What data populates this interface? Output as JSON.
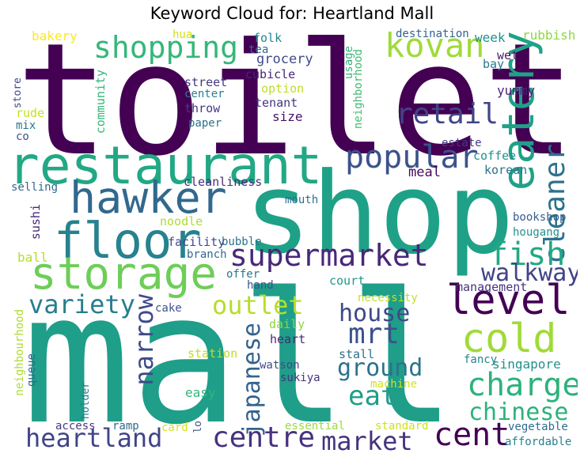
{
  "title": "Keyword Cloud for: Heartland Mall",
  "palette": {
    "dark_purple": "#440154",
    "purple": "#46327e",
    "indigo": "#365c8d",
    "blue": "#277f8e",
    "teal": "#1fa187",
    "green": "#4ac16d",
    "lime": "#a0da39",
    "yellow": "#d9e21b"
  },
  "words": [
    {
      "id": "toilet",
      "text": "toilet",
      "color": "#440154"
    },
    {
      "id": "shop",
      "text": "shop",
      "color": "#1fa187"
    },
    {
      "id": "mall",
      "text": "mall",
      "color": "#1f9e89"
    },
    {
      "id": "restaurant",
      "text": "restaurant",
      "color": "#22a884"
    },
    {
      "id": "hawker",
      "text": "hawker",
      "color": "#31688e"
    },
    {
      "id": "floor",
      "text": "floor",
      "color": "#26828e"
    },
    {
      "id": "storage",
      "text": "storage",
      "color": "#6ece58"
    },
    {
      "id": "eatery",
      "text": "eatery",
      "color": "#1fa187"
    },
    {
      "id": "kovan",
      "text": "kovan",
      "color": "#a0da39"
    },
    {
      "id": "shopping",
      "text": "shopping",
      "color": "#35b779"
    },
    {
      "id": "popular",
      "text": "popular",
      "color": "#3b528b"
    },
    {
      "id": "retail",
      "text": "retail",
      "color": "#404688"
    },
    {
      "id": "cleaner",
      "text": "cleaner",
      "color": "#2c728e"
    },
    {
      "id": "supermarket",
      "text": "supermarket",
      "color": "#482878"
    },
    {
      "id": "level",
      "text": "level",
      "color": "#440154"
    },
    {
      "id": "cold",
      "text": "cold",
      "color": "#a0da39"
    },
    {
      "id": "fish",
      "text": "fish",
      "color": "#22a884"
    },
    {
      "id": "walkway",
      "text": "walkway",
      "color": "#414487"
    },
    {
      "id": "variety",
      "text": "variety",
      "color": "#287d8e"
    },
    {
      "id": "outlet",
      "text": "outlet",
      "color": "#b5de2b"
    },
    {
      "id": "narrow",
      "text": "narrow",
      "color": "#3e4a89"
    },
    {
      "id": "house",
      "text": "house",
      "color": "#3e4989"
    },
    {
      "id": "mrt",
      "text": "mrt",
      "color": "#3b528b"
    },
    {
      "id": "charge",
      "text": "charge",
      "color": "#2db27d"
    },
    {
      "id": "ground",
      "text": "ground",
      "color": "#2c728e"
    },
    {
      "id": "japanese",
      "text": "japanese",
      "color": "#33638d"
    },
    {
      "id": "eat",
      "text": "eat",
      "color": "#1f9e89"
    },
    {
      "id": "chinese",
      "text": "chinese",
      "color": "#2db27d"
    },
    {
      "id": "heartland",
      "text": "heartland",
      "color": "#414487"
    },
    {
      "id": "centre",
      "text": "centre",
      "color": "#46327e"
    },
    {
      "id": "market",
      "text": "market",
      "color": "#46327e"
    },
    {
      "id": "cent",
      "text": "cent",
      "color": "#440154"
    },
    {
      "id": "grocery",
      "text": "grocery",
      "color": "#3e4a89"
    },
    {
      "id": "bakery",
      "text": "bakery",
      "color": "#fde725"
    },
    {
      "id": "hua",
      "text": "hua",
      "color": "#d2e21b"
    },
    {
      "id": "folk",
      "text": "folk",
      "color": "#25858e"
    },
    {
      "id": "tea",
      "text": "tea",
      "color": "#31688e"
    },
    {
      "id": "cubicle",
      "text": "cubicle",
      "color": "#482475"
    },
    {
      "id": "usage",
      "text": "usage",
      "color": "#35b779"
    },
    {
      "id": "neighborhood",
      "text": "neighborhood",
      "color": "#3fbc73"
    },
    {
      "id": "destination",
      "text": "destination",
      "color": "#33638d"
    },
    {
      "id": "week",
      "text": "week",
      "color": "#21918c"
    },
    {
      "id": "rubbish",
      "text": "rubbish",
      "color": "#8fd744"
    },
    {
      "id": "bay",
      "text": "bay",
      "color": "#2a788e"
    },
    {
      "id": "wet",
      "text": "wet",
      "color": "#481a6c"
    },
    {
      "id": "yummy",
      "text": "yummy",
      "color": "#482475"
    },
    {
      "id": "store",
      "text": "store",
      "color": "#3e4a89"
    },
    {
      "id": "community",
      "text": "community",
      "color": "#35b779"
    },
    {
      "id": "street",
      "text": "street",
      "color": "#453781"
    },
    {
      "id": "center",
      "text": "center",
      "color": "#277f8e"
    },
    {
      "id": "throw",
      "text": "throw",
      "color": "#443983"
    },
    {
      "id": "paper",
      "text": "paper",
      "color": "#2d708e"
    },
    {
      "id": "option",
      "text": "option",
      "color": "#bddf26"
    },
    {
      "id": "tenant",
      "text": "tenant",
      "color": "#453581"
    },
    {
      "id": "size",
      "text": "size",
      "color": "#471164"
    },
    {
      "id": "rude",
      "text": "rude",
      "color": "#c8e020"
    },
    {
      "id": "mix",
      "text": "mix",
      "color": "#2a788e"
    },
    {
      "id": "co",
      "text": "co",
      "color": "#3b528b"
    },
    {
      "id": "estate",
      "text": "estate",
      "color": "#443983"
    },
    {
      "id": "coffee",
      "text": "coffee",
      "color": "#21918c"
    },
    {
      "id": "korean",
      "text": "korean",
      "color": "#2c728e"
    },
    {
      "id": "meal",
      "text": "meal",
      "color": "#46085c"
    },
    {
      "id": "selling",
      "text": "selling",
      "color": "#31688e"
    },
    {
      "id": "sushi",
      "text": "sushi",
      "color": "#482878"
    },
    {
      "id": "cleanliness",
      "text": "cleanliness",
      "color": "#472d7b"
    },
    {
      "id": "mouth",
      "text": "mouth",
      "color": "#2d708e"
    },
    {
      "id": "noodle",
      "text": "noodle",
      "color": "#addc30"
    },
    {
      "id": "bubble",
      "text": "bubble",
      "color": "#2c728e"
    },
    {
      "id": "bookshop",
      "text": "bookshop",
      "color": "#365c8d"
    },
    {
      "id": "hougang",
      "text": "hougang",
      "color": "#21918c"
    },
    {
      "id": "facility",
      "text": "facility",
      "color": "#3e4a89"
    },
    {
      "id": "branch",
      "text": "branch",
      "color": "#31688e"
    },
    {
      "id": "ball",
      "text": "ball",
      "color": "#b5de2b"
    },
    {
      "id": "offer",
      "text": "offer",
      "color": "#2a788e"
    },
    {
      "id": "hand",
      "text": "hand",
      "color": "#3b528b"
    },
    {
      "id": "court",
      "text": "court",
      "color": "#1e9b8a"
    },
    {
      "id": "management",
      "text": "management",
      "color": "#46337f"
    },
    {
      "id": "cake",
      "text": "cake",
      "color": "#3b528b"
    },
    {
      "id": "necessity",
      "text": "necessity",
      "color": "#c2df23"
    },
    {
      "id": "daily",
      "text": "daily",
      "color": "#8bd646"
    },
    {
      "id": "heart",
      "text": "heart",
      "color": "#482878"
    },
    {
      "id": "neighbourhood",
      "text": "neighbourhood",
      "color": "#addc30"
    },
    {
      "id": "queue",
      "text": "queue",
      "color": "#31688e"
    },
    {
      "id": "station",
      "text": "station",
      "color": "#b8de29"
    },
    {
      "id": "watson",
      "text": "watson",
      "color": "#3e4a89"
    },
    {
      "id": "sukiya",
      "text": "sukiya",
      "color": "#46327e"
    },
    {
      "id": "stall",
      "text": "stall",
      "color": "#2d708e"
    },
    {
      "id": "singapore",
      "text": "singapore",
      "color": "#21918c"
    },
    {
      "id": "fancy",
      "text": "fancy",
      "color": "#25858e"
    },
    {
      "id": "holder",
      "text": "holder",
      "color": "#2a788e"
    },
    {
      "id": "easy",
      "text": "easy",
      "color": "#32b67a"
    },
    {
      "id": "machine",
      "text": "machine",
      "color": "#d5e21a"
    },
    {
      "id": "access",
      "text": "access",
      "color": "#453781"
    },
    {
      "id": "ramp",
      "text": "ramp",
      "color": "#30698e"
    },
    {
      "id": "card",
      "text": "card",
      "color": "#d8e219"
    },
    {
      "id": "lo",
      "text": "lo",
      "color": "#3b528b"
    },
    {
      "id": "essential",
      "text": "essential",
      "color": "#9bd93c"
    },
    {
      "id": "standard",
      "text": "standard",
      "color": "#d0e11c"
    },
    {
      "id": "vegetable",
      "text": "vegetable",
      "color": "#2f6c8e"
    },
    {
      "id": "affordable",
      "text": "affordable",
      "color": "#26828e"
    }
  ]
}
